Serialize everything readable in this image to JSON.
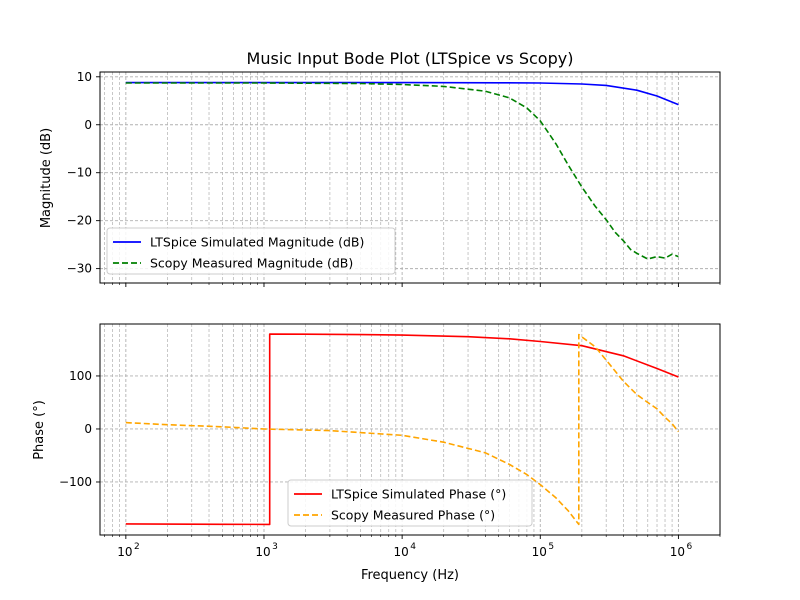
{
  "chart_data": [
    {
      "type": "line",
      "title": "Music Input Bode Plot (LTSpice vs Scopy)",
      "xlabel": "",
      "ylabel": "Magnitude (dB)",
      "xscale": "log",
      "xlim": [
        65,
        2000000
      ],
      "ylim": [
        -33,
        11
      ],
      "yticks": [
        10,
        0,
        -10,
        -20,
        -30
      ],
      "ytick_labels": [
        "10",
        "0",
        "−10",
        "−20",
        "−30"
      ],
      "grid": true,
      "legend_position": "lower-left",
      "series": [
        {
          "name": "LTSpice Simulated Magnitude (dB)",
          "color": "#0000ff",
          "style": "solid",
          "x": [
            100,
            1000,
            10000,
            50000,
            100000,
            200000,
            300000,
            500000,
            700000,
            1000000
          ],
          "y": [
            8.8,
            8.8,
            8.8,
            8.75,
            8.7,
            8.5,
            8.2,
            7.2,
            6.0,
            4.2
          ]
        },
        {
          "name": "Scopy Measured Magnitude (dB)",
          "color": "#008000",
          "style": "dashed",
          "x": [
            100,
            1000,
            5000,
            10000,
            20000,
            40000,
            60000,
            80000,
            100000,
            130000,
            160000,
            200000,
            250000,
            300000,
            350000,
            400000,
            450000,
            500000,
            600000,
            700000,
            800000,
            900000,
            1000000
          ],
          "y": [
            8.7,
            8.7,
            8.6,
            8.4,
            8.0,
            7.0,
            5.6,
            3.5,
            0.8,
            -4.0,
            -8.5,
            -13.0,
            -17.0,
            -19.8,
            -22.5,
            -24.2,
            -26.0,
            -26.8,
            -28.0,
            -27.5,
            -27.8,
            -27.0,
            -27.5
          ]
        }
      ]
    },
    {
      "type": "line",
      "title": "",
      "xlabel": "Frequency (Hz)",
      "ylabel": "Phase (°)",
      "xscale": "log",
      "xlim": [
        65,
        2000000
      ],
      "ylim": [
        -200,
        198
      ],
      "xticks": [
        100,
        1000,
        10000,
        100000,
        1000000
      ],
      "xtick_labels": [
        "10",
        "10",
        "10",
        "10",
        "10"
      ],
      "xtick_exponents": [
        "2",
        "3",
        "4",
        "5",
        "6"
      ],
      "yticks": [
        100,
        0,
        -100
      ],
      "ytick_labels": [
        "100",
        "0",
        "−100"
      ],
      "grid": true,
      "legend_position": "lower-center",
      "series": [
        {
          "name": "LTSpice Simulated Phase (°)",
          "color": "#ff0000",
          "style": "solid",
          "x": [
            100,
            500,
            1100,
            1100,
            2000,
            5000,
            10000,
            30000,
            60000,
            100000,
            200000,
            400000,
            700000,
            1000000
          ],
          "y": [
            -179,
            -179.8,
            -180,
            179,
            178.7,
            178,
            177,
            174,
            170,
            165,
            157,
            138,
            114,
            98
          ]
        },
        {
          "name": "Scopy Measured Phase (°)",
          "color": "#ffa500",
          "style": "dashed",
          "x": [
            100,
            200,
            500,
            1000,
            3000,
            10000,
            20000,
            40000,
            60000,
            80000,
            100000,
            130000,
            160000,
            190000,
            190000,
            250000,
            300000,
            400000,
            500000,
            600000,
            700000,
            800000,
            900000,
            1000000
          ],
          "y": [
            12,
            8,
            4,
            0,
            -3,
            -12,
            -25,
            -45,
            -67,
            -86,
            -105,
            -130,
            -155,
            -180,
            178,
            155,
            130,
            90,
            65,
            50,
            38,
            22,
            10,
            -5
          ]
        }
      ]
    }
  ]
}
